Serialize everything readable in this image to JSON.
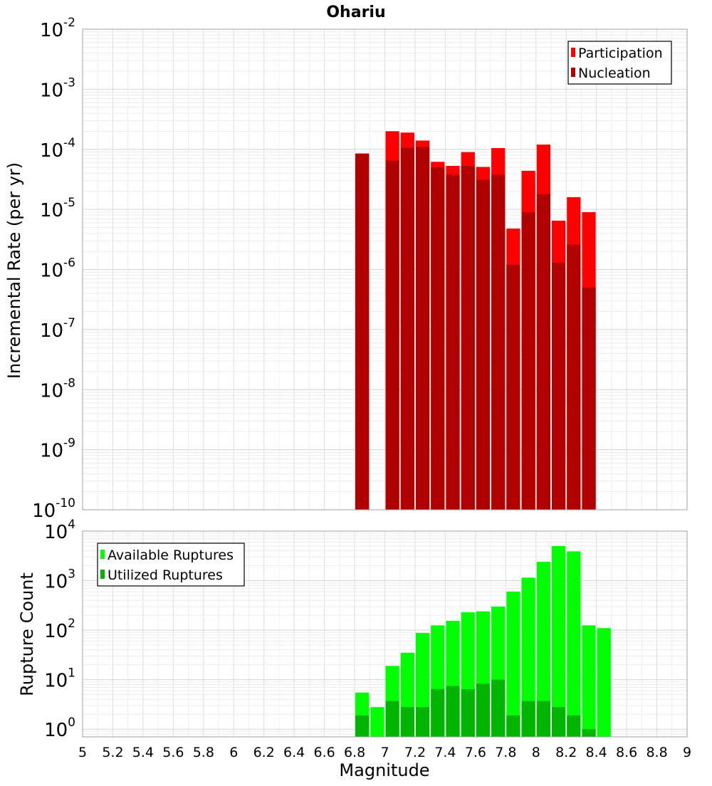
{
  "chart_data": [
    {
      "type": "bar",
      "title": "Ohariu",
      "ylabel": "Incremental Rate (per yr)",
      "yscale": "log",
      "ylim": [
        1e-10,
        0.01
      ],
      "xlim": [
        5,
        9
      ],
      "y_tick_exponents": [
        -2,
        -3,
        -4,
        -5,
        -6,
        -7,
        -8,
        -9,
        -10
      ],
      "bar_width": 0.1,
      "legend_position": "top-right",
      "grid": true,
      "series": [
        {
          "name": "Participation",
          "color": "#ff0000",
          "points": [
            [
              6.85,
              8.5e-05
            ],
            [
              7.05,
              0.0002
            ],
            [
              7.15,
              0.00019
            ],
            [
              7.25,
              0.00014
            ],
            [
              7.35,
              6.2e-05
            ],
            [
              7.45,
              5.3e-05
            ],
            [
              7.55,
              9e-05
            ],
            [
              7.65,
              5.1e-05
            ],
            [
              7.75,
              0.000105
            ],
            [
              7.85,
              4.8e-06
            ],
            [
              7.95,
              4.4e-05
            ],
            [
              8.05,
              0.00012
            ],
            [
              8.15,
              6.5e-06
            ],
            [
              8.25,
              1.6e-05
            ],
            [
              8.35,
              9e-06
            ]
          ]
        },
        {
          "name": "Nucleation",
          "color": "#b10000",
          "points": [
            [
              6.85,
              8.5e-05
            ],
            [
              7.05,
              6.5e-05
            ],
            [
              7.15,
              0.000106
            ],
            [
              7.25,
              0.00011
            ],
            [
              7.35,
              5e-05
            ],
            [
              7.45,
              3.8e-05
            ],
            [
              7.55,
              5.3e-05
            ],
            [
              7.65,
              3.1e-05
            ],
            [
              7.75,
              3.8e-05
            ],
            [
              7.85,
              1.2e-06
            ],
            [
              7.95,
              9e-06
            ],
            [
              8.05,
              1.8e-05
            ],
            [
              8.15,
              1.3e-06
            ],
            [
              8.25,
              2.6e-06
            ],
            [
              8.35,
              5e-07
            ]
          ]
        }
      ]
    },
    {
      "type": "bar",
      "ylabel": "Rupture Count",
      "xlabel": "Magnitude",
      "yscale": "log",
      "ylim": [
        0.7,
        10000
      ],
      "xlim": [
        5,
        9
      ],
      "y_tick_exponents": [
        4,
        3,
        2,
        1,
        0
      ],
      "x_ticks": [
        "5",
        "5.2",
        "5.4",
        "5.6",
        "5.8",
        "6",
        "6.2",
        "6.4",
        "6.6",
        "6.8",
        "7",
        "7.2",
        "7.4",
        "7.6",
        "7.8",
        "8",
        "8.2",
        "8.4",
        "8.6",
        "8.8",
        "9"
      ],
      "bar_width": 0.1,
      "legend_position": "top-left",
      "grid": true,
      "series": [
        {
          "name": "Available Ruptures",
          "color": "#00ff00",
          "points": [
            [
              6.85,
              5.5
            ],
            [
              6.95,
              2.8
            ],
            [
              7.05,
              19
            ],
            [
              7.15,
              35
            ],
            [
              7.25,
              88
            ],
            [
              7.35,
              125
            ],
            [
              7.45,
              155
            ],
            [
              7.55,
              230
            ],
            [
              7.65,
              240
            ],
            [
              7.75,
              300
            ],
            [
              7.85,
              600
            ],
            [
              7.95,
              1150
            ],
            [
              8.05,
              2400
            ],
            [
              8.15,
              5000
            ],
            [
              8.25,
              3900
            ],
            [
              8.35,
              125
            ],
            [
              8.45,
              110
            ]
          ]
        },
        {
          "name": "Utilized Ruptures",
          "color": "#00b400",
          "points": [
            [
              6.85,
              1.9
            ],
            [
              7.05,
              3.7
            ],
            [
              7.15,
              2.8
            ],
            [
              7.25,
              2.8
            ],
            [
              7.35,
              6.5
            ],
            [
              7.45,
              7.5
            ],
            [
              7.55,
              6.4
            ],
            [
              7.65,
              8.3
            ],
            [
              7.75,
              10
            ],
            [
              7.85,
              1.9
            ],
            [
              7.95,
              3.7
            ],
            [
              8.05,
              3.7
            ],
            [
              8.15,
              2.8
            ],
            [
              8.25,
              1.9
            ],
            [
              8.35,
              1.0
            ]
          ]
        }
      ]
    }
  ]
}
